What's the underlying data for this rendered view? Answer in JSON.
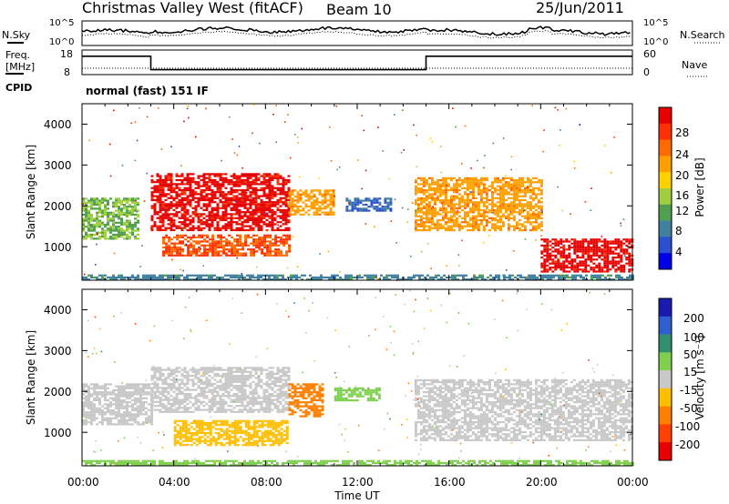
{
  "header": {
    "title": "Christmas Valley West (fitACF)",
    "beam": "Beam 10",
    "date": "25/Jun/2011",
    "cpid_label": "CPID",
    "cpid_value": "normal (fast) 151 IF"
  },
  "noise_panel": {
    "left_label": "N.Sky",
    "right_label": "N.Search",
    "tick_top": "10^5",
    "tick_bottom": "10^0"
  },
  "freq_panel": {
    "left_label_1": "Freq.",
    "left_label_2": "[MHz]",
    "right_label": "Nave",
    "left_ticks": [
      "18",
      "8"
    ],
    "right_ticks": [
      "60",
      "0"
    ]
  },
  "x_axis": {
    "label": "Time UT",
    "ticks": [
      "00:00",
      "04:00",
      "08:00",
      "12:00",
      "16:00",
      "20:00",
      "00:00"
    ]
  },
  "power_panel": {
    "ylabel": "Slant Range [km]",
    "yticks": [
      "4000",
      "3000",
      "2000",
      "1000"
    ],
    "colorbar_label": "Power [dB]",
    "colorbar_ticks": [
      "28",
      "24",
      "20",
      "16",
      "12",
      "8",
      "4"
    ],
    "colors": [
      "#0000e6",
      "#2a4fd0",
      "#3f7f9f",
      "#4f9f4f",
      "#9fcf3f",
      "#ffd000",
      "#ff9f00",
      "#ff6a00",
      "#ff3000",
      "#e60000"
    ]
  },
  "velocity_panel": {
    "ylabel": "Slant Range [km]",
    "yticks": [
      "4000",
      "3000",
      "2000",
      "1000"
    ],
    "colorbar_label": "Velocity [m s⁻¹]",
    "colorbar_ticks": [
      "200",
      "100",
      "50",
      "15",
      "-15",
      "-50",
      "-100",
      "-200"
    ],
    "colors": [
      "#1a1ab0",
      "#2f5fcf",
      "#2f8f6f",
      "#7fd04f",
      "#c8c8c8",
      "#ffbf00",
      "#ff8000",
      "#ff4000",
      "#e60000"
    ]
  },
  "chart_data": {
    "type": "heatmap",
    "title": "Christmas Valley West (fitACF)",
    "xlabel": "Time UT",
    "ylabel": "Slant Range [km]",
    "x_range_hours": [
      0,
      24
    ],
    "y_range_km": [
      180,
      4500
    ],
    "frequency_mhz": [
      {
        "start_hour": 0,
        "end_hour": 3.0,
        "value": 15.5
      },
      {
        "start_hour": 3.0,
        "end_hour": 15.0,
        "value": 10.0
      },
      {
        "start_hour": 15.0,
        "end_hour": 24,
        "value": 15.5
      }
    ],
    "power_regions_db": [
      {
        "t0": 0.0,
        "t1": 2.5,
        "r0": 1200,
        "r1": 2200,
        "db": 12
      },
      {
        "t0": 3.0,
        "t1": 9.0,
        "r0": 1400,
        "r1": 2800,
        "db": 28
      },
      {
        "t0": 3.5,
        "t1": 9.0,
        "r0": 800,
        "r1": 1300,
        "db": 24
      },
      {
        "t0": 9.0,
        "t1": 11.0,
        "r0": 1800,
        "r1": 2400,
        "db": 20
      },
      {
        "t0": 11.5,
        "t1": 13.5,
        "r0": 1900,
        "r1": 2200,
        "db": 6
      },
      {
        "t0": 14.5,
        "t1": 20.0,
        "r0": 1400,
        "r1": 2700,
        "db": 20
      },
      {
        "t0": 20.0,
        "t1": 24.0,
        "r0": 400,
        "r1": 1200,
        "db": 28
      },
      {
        "t0": 0.0,
        "t1": 24.0,
        "r0": 180,
        "r1": 320,
        "db": 8
      }
    ],
    "velocity_regions_ms": [
      {
        "t0": 0.0,
        "t1": 3.0,
        "r0": 1200,
        "r1": 2200,
        "v": 0
      },
      {
        "t0": 3.0,
        "t1": 9.0,
        "r0": 1500,
        "r1": 2600,
        "v": 0
      },
      {
        "t0": 4.0,
        "t1": 9.0,
        "r0": 700,
        "r1": 1300,
        "v": -50
      },
      {
        "t0": 9.0,
        "t1": 10.5,
        "r0": 1400,
        "r1": 2200,
        "v": -100
      },
      {
        "t0": 11.0,
        "t1": 13.0,
        "r0": 1800,
        "r1": 2100,
        "v": 50
      },
      {
        "t0": 14.5,
        "t1": 24.0,
        "r0": 800,
        "r1": 2300,
        "v": 0
      },
      {
        "t0": 0.0,
        "t1": 24.0,
        "r0": 180,
        "r1": 320,
        "v": 50
      }
    ],
    "power_colorbar_range_db": [
      0,
      30
    ],
    "velocity_colorbar_range_ms": [
      -200,
      200
    ]
  }
}
